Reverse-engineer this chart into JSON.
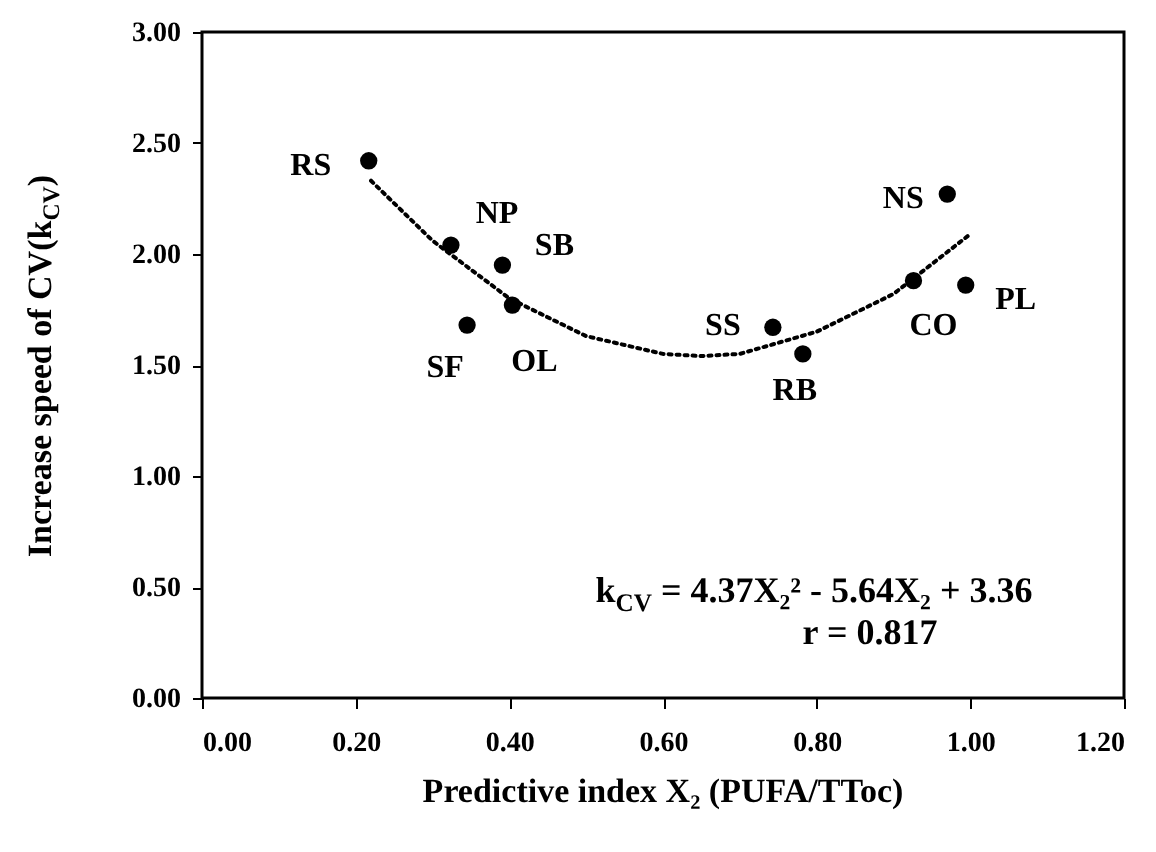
{
  "chart_data": {
    "type": "scatter",
    "xlabel": "Predictive index X₂ (PUFA/TToc)",
    "ylabel": "Increase speed of CV(k$_{CV}$)",
    "xlim": [
      0,
      1.2
    ],
    "ylim": [
      0,
      3
    ],
    "xticks": [
      {
        "value": 0,
        "label": "0.00"
      },
      {
        "value": 0.2,
        "label": "0.20"
      },
      {
        "value": 0.4,
        "label": "0.40"
      },
      {
        "value": 0.6,
        "label": "0.60"
      },
      {
        "value": 0.8,
        "label": "0.80"
      },
      {
        "value": 1,
        "label": "1.00"
      },
      {
        "value": 1.2,
        "label": "1.20"
      }
    ],
    "yticks": [
      {
        "value": 0,
        "label": "0.00"
      },
      {
        "value": 0.5,
        "label": "0.50"
      },
      {
        "value": 1,
        "label": "1.00"
      },
      {
        "value": 1.5,
        "label": "1.50"
      },
      {
        "value": 2,
        "label": "2.00"
      },
      {
        "value": 2.5,
        "label": "2.50"
      },
      {
        "value": 3,
        "label": "3.00"
      }
    ],
    "grid": false,
    "marker": "circle",
    "series": [
      {
        "name": "RS",
        "color": "#000000",
        "x": [
          0.217
        ],
        "values": [
          2.42
        ]
      },
      {
        "name": "NP",
        "color": "#000000",
        "x": [
          0.324
        ],
        "values": [
          2.04
        ]
      },
      {
        "name": "SB",
        "color": "#000000",
        "x": [
          0.391
        ],
        "values": [
          1.95
        ]
      },
      {
        "name": "OL",
        "color": "#000000",
        "x": [
          0.404
        ],
        "values": [
          1.77
        ]
      },
      {
        "name": "SF",
        "color": "#000000",
        "x": [
          0.345
        ],
        "values": [
          1.68
        ]
      },
      {
        "name": "SS",
        "color": "#000000",
        "x": [
          0.743
        ],
        "values": [
          1.67
        ]
      },
      {
        "name": "RB",
        "color": "#000000",
        "x": [
          0.782
        ],
        "values": [
          1.55
        ]
      },
      {
        "name": "CO",
        "color": "#000000",
        "x": [
          0.926
        ],
        "values": [
          1.88
        ]
      },
      {
        "name": "PL",
        "color": "#000000",
        "x": [
          0.994
        ],
        "values": [
          1.86
        ]
      },
      {
        "name": "NS",
        "color": "#000000",
        "x": [
          0.97
        ],
        "values": [
          2.27
        ]
      },
      {
        "type": "line",
        "color": "#000000",
        "line_style": "dotted",
        "marker": "none",
        "x": [
          0.22,
          0.3,
          0.4,
          0.5,
          0.6,
          0.65,
          0.7,
          0.8,
          0.9,
          1.0
        ],
        "values": [
          2.33,
          2.06,
          1.8,
          1.63,
          1.55,
          1.54,
          1.55,
          1.65,
          1.82,
          2.09
        ]
      }
    ],
    "annotations": [
      "k$_{CV}$ = 4.37X₂² - 5.64X₂ + 3.36",
      "r = 0.817"
    ]
  }
}
